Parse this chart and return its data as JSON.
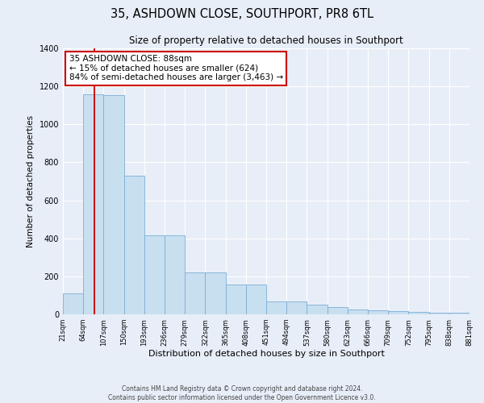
{
  "title": "35, ASHDOWN CLOSE, SOUTHPORT, PR8 6TL",
  "subtitle": "Size of property relative to detached houses in Southport",
  "bar_values": [
    110,
    1160,
    1155,
    730,
    415,
    415,
    220,
    220,
    155,
    155,
    70,
    70,
    50,
    40,
    27,
    20,
    15,
    12,
    10,
    10
  ],
  "bin_edges": [
    21,
    64,
    107,
    150,
    193,
    236,
    279,
    322,
    365,
    408,
    451,
    494,
    537,
    580,
    623,
    666,
    709,
    752,
    795,
    838,
    881
  ],
  "bin_labels": [
    "21sqm",
    "64sqm",
    "107sqm",
    "150sqm",
    "193sqm",
    "236sqm",
    "279sqm",
    "322sqm",
    "365sqm",
    "408sqm",
    "451sqm",
    "494sqm",
    "537sqm",
    "580sqm",
    "623sqm",
    "666sqm",
    "709sqm",
    "752sqm",
    "795sqm",
    "838sqm",
    "881sqm"
  ],
  "bar_color": "#c8dff0",
  "bar_edge_color": "#7aaed4",
  "property_line_x": 88,
  "property_line_color": "#cc0000",
  "ylim": [
    0,
    1400
  ],
  "yticks": [
    0,
    200,
    400,
    600,
    800,
    1000,
    1200,
    1400
  ],
  "ylabel": "Number of detached properties",
  "xlabel": "Distribution of detached houses by size in Southport",
  "annotation_title": "35 ASHDOWN CLOSE: 88sqm",
  "annotation_line1": "← 15% of detached houses are smaller (624)",
  "annotation_line2": "84% of semi-detached houses are larger (3,463) →",
  "annotation_box_color": "#ffffff",
  "annotation_box_edge_color": "#cc0000",
  "footer_line1": "Contains HM Land Registry data © Crown copyright and database right 2024.",
  "footer_line2": "Contains public sector information licensed under the Open Government Licence v3.0.",
  "bg_color": "#e8eef8",
  "plot_bg_color": "#e8eef8",
  "grid_color": "#ffffff",
  "title_fontsize": 10.5,
  "subtitle_fontsize": 8.5,
  "ylabel_fontsize": 7.5,
  "xlabel_fontsize": 8,
  "tick_fontsize": 6,
  "footer_fontsize": 5.5,
  "ann_fontsize": 7.5
}
